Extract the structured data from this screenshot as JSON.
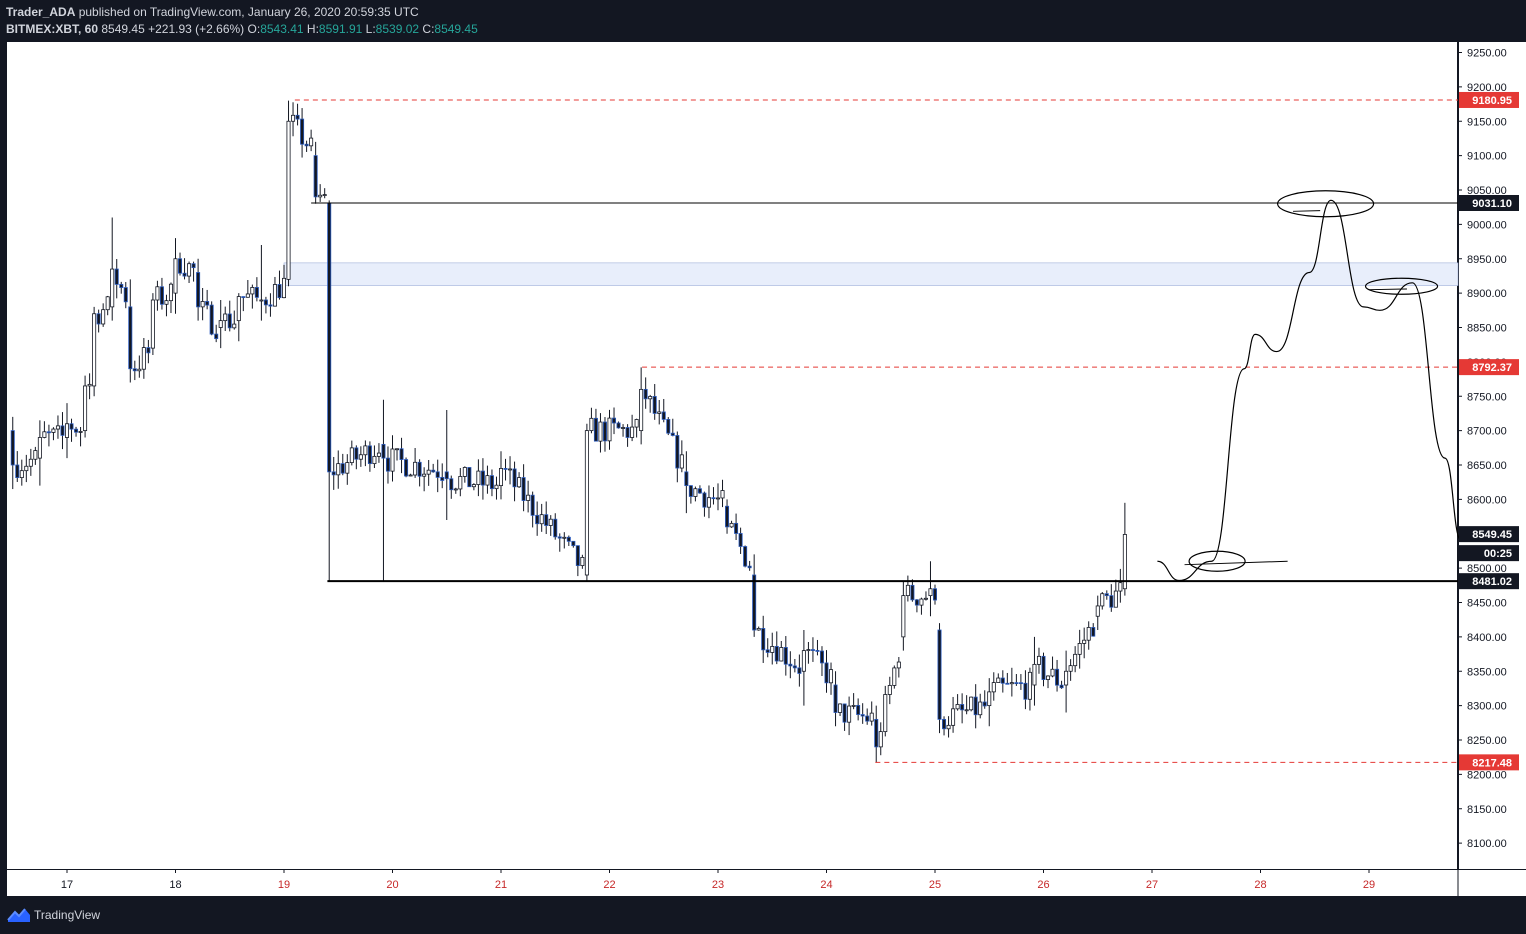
{
  "header": {
    "author": "Trader_ADA",
    "published_text": "published on TradingView.com, January 26, 2020 20:59:35 UTC",
    "symbol": "BITMEX:XBT, 60",
    "last": "8549.45",
    "change": "+221.93 (+2.66%)",
    "o_label": "O:",
    "o_value": "8543.41",
    "h_label": "H:",
    "h_value": "8591.91",
    "l_label": "L:",
    "l_value": "8539.02",
    "c_label": "C:",
    "c_value": "8549.45"
  },
  "footer": {
    "brand": "TradingView"
  },
  "colors": {
    "up": "#26a69a",
    "down": "#131722",
    "bg": "#131722",
    "marker": "#e53935",
    "zone": "#e8eefb"
  },
  "chart_data": {
    "type": "candlestick",
    "timeframe": "60",
    "ylim": [
      8050,
      9260
    ],
    "x_ticks": [
      "17",
      "18",
      "19",
      "20",
      "21",
      "22",
      "23",
      "24",
      "25",
      "26",
      "27",
      "28",
      "29"
    ],
    "y_ticks": [
      "9250.00",
      "9200.00",
      "9150.00",
      "9100.00",
      "9050.00",
      "9000.00",
      "8950.00",
      "8900.00",
      "8850.00",
      "8800.00",
      "8750.00",
      "8700.00",
      "8650.00",
      "8600.00",
      "8550.00",
      "8500.00",
      "8450.00",
      "8400.00",
      "8350.00",
      "8300.00",
      "8250.00",
      "8200.00",
      "8150.00",
      "8100.00"
    ],
    "price_labels": [
      {
        "text": "9180.95",
        "value": 9180.95,
        "style": "red"
      },
      {
        "text": "9031.10",
        "value": 9031.1,
        "style": "black"
      },
      {
        "text": "8792.37",
        "value": 8792.37,
        "style": "red"
      },
      {
        "text": "8549.45",
        "value": 8549.45,
        "style": "black"
      },
      {
        "text": "00:25",
        "value": 8525,
        "style": "black"
      },
      {
        "text": "8481.02",
        "value": 8481.02,
        "style": "black"
      },
      {
        "text": "8217.48",
        "value": 8217.48,
        "style": "red"
      }
    ],
    "horizontal_lines": [
      {
        "price": 9180.95,
        "from_day": 19.1,
        "style": "red-dashed"
      },
      {
        "price": 9031.1,
        "from_day": 19.25,
        "style": "black"
      },
      {
        "price": 8792.37,
        "from_day": 22.3,
        "style": "red-dashed"
      },
      {
        "price": 8481.02,
        "from_day": 19.4,
        "style": "black-thick"
      },
      {
        "price": 8217.48,
        "from_day": 24.45,
        "style": "red-dashed"
      }
    ],
    "zone": {
      "from_day": 19.0,
      "top": 8944,
      "bottom": 8911
    },
    "path_key_points": [
      {
        "day": 27.05,
        "price": 8510
      },
      {
        "day": 27.25,
        "price": 8482
      },
      {
        "day": 27.55,
        "price": 8510
      },
      {
        "day": 27.85,
        "price": 8790
      },
      {
        "day": 27.95,
        "price": 8840
      },
      {
        "day": 28.15,
        "price": 8815
      },
      {
        "day": 28.45,
        "price": 8930
      },
      {
        "day": 28.65,
        "price": 9035
      },
      {
        "day": 28.95,
        "price": 8880
      },
      {
        "day": 29.1,
        "price": 8875
      },
      {
        "day": 29.4,
        "price": 8915
      },
      {
        "day": 29.7,
        "price": 8660
      },
      {
        "day": 29.85,
        "price": 8540
      }
    ],
    "ohlc_sample": [
      {
        "day": 16.5,
        "o": 8700,
        "h": 8720,
        "l": 8615,
        "c": 8650
      },
      {
        "day": 16.75,
        "o": 8660,
        "h": 8715,
        "l": 8620,
        "c": 8690
      },
      {
        "day": 17.0,
        "o": 8690,
        "h": 8740,
        "l": 8660,
        "c": 8710
      },
      {
        "day": 17.15,
        "o": 8700,
        "h": 8780,
        "l": 8690,
        "c": 8765
      },
      {
        "day": 17.25,
        "o": 8765,
        "h": 8880,
        "l": 8750,
        "c": 8870
      },
      {
        "day": 17.4,
        "o": 8880,
        "h": 9010,
        "l": 8860,
        "c": 8935
      },
      {
        "day": 17.6,
        "o": 8880,
        "h": 8920,
        "l": 8770,
        "c": 8790
      },
      {
        "day": 17.8,
        "o": 8820,
        "h": 8900,
        "l": 8810,
        "c": 8890
      },
      {
        "day": 18.0,
        "o": 8900,
        "h": 8980,
        "l": 8870,
        "c": 8950
      },
      {
        "day": 18.2,
        "o": 8930,
        "h": 8950,
        "l": 8860,
        "c": 8880
      },
      {
        "day": 18.4,
        "o": 8850,
        "h": 8890,
        "l": 8820,
        "c": 8860
      },
      {
        "day": 18.6,
        "o": 8860,
        "h": 8900,
        "l": 8830,
        "c": 8895
      },
      {
        "day": 18.8,
        "o": 8890,
        "h": 8970,
        "l": 8860,
        "c": 8890
      },
      {
        "day": 19.05,
        "o": 8920,
        "h": 9180,
        "l": 8910,
        "c": 9150
      },
      {
        "day": 19.3,
        "o": 9100,
        "h": 9120,
        "l": 9030,
        "c": 9040
      },
      {
        "day": 19.42,
        "o": 9031,
        "h": 9035,
        "l": 8481,
        "c": 8640
      },
      {
        "day": 19.9,
        "o": 8680,
        "h": 8745,
        "l": 8481,
        "c": 8660
      },
      {
        "day": 20.5,
        "o": 8640,
        "h": 8730,
        "l": 8570,
        "c": 8630
      },
      {
        "day": 21.0,
        "o": 8620,
        "h": 8670,
        "l": 8600,
        "c": 8645
      },
      {
        "day": 21.8,
        "o": 8490,
        "h": 8710,
        "l": 8481,
        "c": 8700
      },
      {
        "day": 22.3,
        "o": 8700,
        "h": 8792,
        "l": 8680,
        "c": 8760
      },
      {
        "day": 22.7,
        "o": 8640,
        "h": 8670,
        "l": 8580,
        "c": 8620
      },
      {
        "day": 23.1,
        "o": 8590,
        "h": 8600,
        "l": 8550,
        "c": 8560
      },
      {
        "day": 23.35,
        "o": 8490,
        "h": 8520,
        "l": 8400,
        "c": 8410
      },
      {
        "day": 23.8,
        "o": 8350,
        "h": 8410,
        "l": 8300,
        "c": 8380
      },
      {
        "day": 24.1,
        "o": 8330,
        "h": 8350,
        "l": 8270,
        "c": 8290
      },
      {
        "day": 24.45,
        "o": 8280,
        "h": 8300,
        "l": 8217,
        "c": 8240
      },
      {
        "day": 24.7,
        "o": 8400,
        "h": 8480,
        "l": 8380,
        "c": 8460
      },
      {
        "day": 24.95,
        "o": 8460,
        "h": 8510,
        "l": 8430,
        "c": 8470
      },
      {
        "day": 25.05,
        "o": 8410,
        "h": 8420,
        "l": 8260,
        "c": 8280
      },
      {
        "day": 25.5,
        "o": 8300,
        "h": 8340,
        "l": 8270,
        "c": 8320
      },
      {
        "day": 25.9,
        "o": 8330,
        "h": 8400,
        "l": 8300,
        "c": 8360
      },
      {
        "day": 26.2,
        "o": 8330,
        "h": 8380,
        "l": 8290,
        "c": 8350
      },
      {
        "day": 26.5,
        "o": 8430,
        "h": 8460,
        "l": 8410,
        "c": 8445
      },
      {
        "day": 26.75,
        "o": 8470,
        "h": 8595,
        "l": 8460,
        "c": 8549
      }
    ]
  }
}
